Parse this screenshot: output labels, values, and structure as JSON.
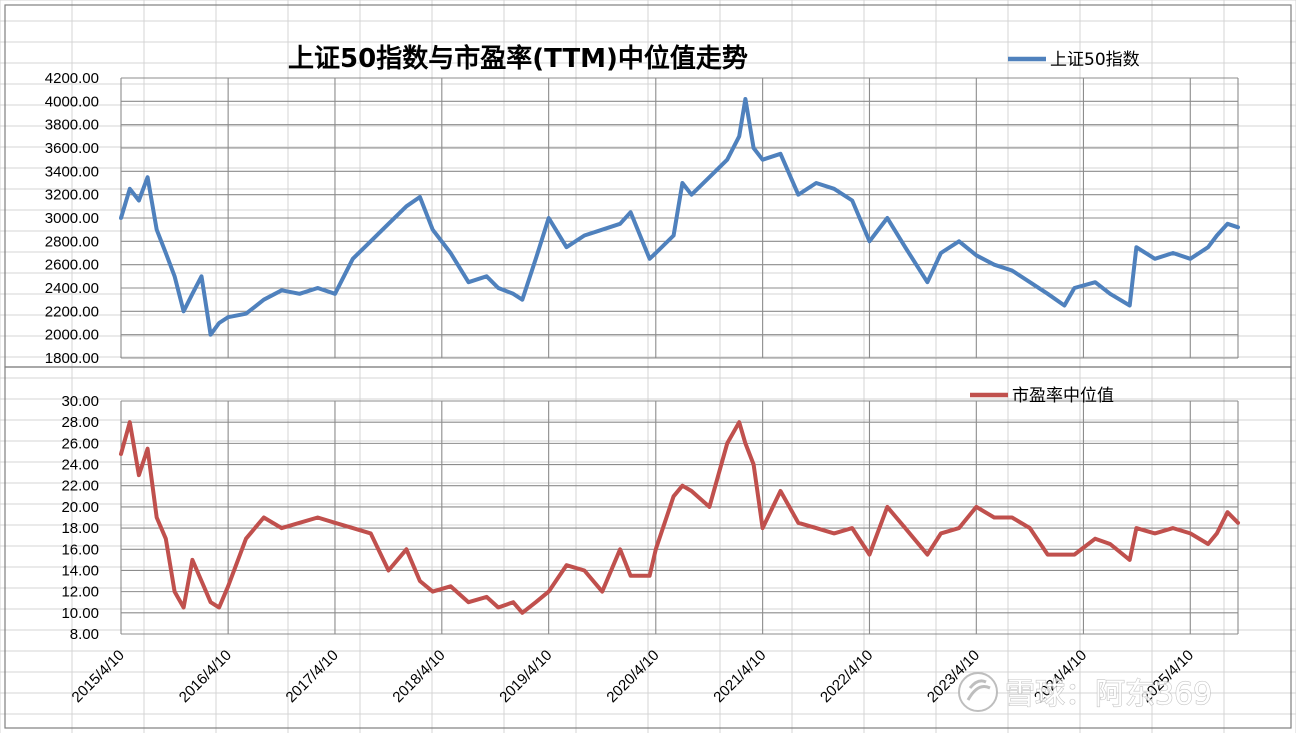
{
  "chart_data": [
    {
      "type": "line",
      "title": "上证50指数与市盈率(TTM)中位值走势",
      "legend_position": "top-right",
      "grid": true,
      "ylim": [
        1800,
        4200
      ],
      "y_ticks": [
        "4200.00",
        "4000.00",
        "3800.00",
        "3600.00",
        "3400.00",
        "3200.00",
        "3000.00",
        "2800.00",
        "2600.00",
        "2400.00",
        "2200.00",
        "2000.00",
        "1800.00"
      ],
      "series": [
        {
          "name": "上证50指数",
          "color": "#4f81bd",
          "x": [
            "2015/4/10",
            "2015/5/10",
            "2015/6/10",
            "2015/7/10",
            "2015/8/10",
            "2015/9/10",
            "2015/10/10",
            "2015/11/10",
            "2015/12/10",
            "2016/1/10",
            "2016/2/10",
            "2016/3/10",
            "2016/4/10",
            "2016/6/10",
            "2016/8/10",
            "2016/10/10",
            "2016/12/10",
            "2017/2/10",
            "2017/4/10",
            "2017/6/10",
            "2017/8/10",
            "2017/10/10",
            "2017/12/10",
            "2018/1/25",
            "2018/3/10",
            "2018/5/10",
            "2018/7/10",
            "2018/9/10",
            "2018/10/20",
            "2018/12/10",
            "2019/1/10",
            "2019/2/25",
            "2019/4/10",
            "2019/6/10",
            "2019/8/10",
            "2019/10/10",
            "2019/12/10",
            "2020/1/15",
            "2020/3/20",
            "2020/4/10",
            "2020/6/10",
            "2020/7/10",
            "2020/8/10",
            "2020/10/10",
            "2020/12/10",
            "2021/1/20",
            "2021/2/10",
            "2021/3/10",
            "2021/4/10",
            "2021/6/10",
            "2021/8/10",
            "2021/10/10",
            "2021/12/10",
            "2022/2/10",
            "2022/4/10",
            "2022/6/10",
            "2022/8/10",
            "2022/10/25",
            "2022/12/10",
            "2023/2/10",
            "2023/4/10",
            "2023/6/10",
            "2023/8/10",
            "2023/10/10",
            "2023/12/10",
            "2024/2/5",
            "2024/3/10",
            "2024/5/20",
            "2024/7/10",
            "2024/9/15",
            "2024/10/8",
            "2024/12/10",
            "2025/2/10",
            "2025/4/10",
            "2025/6/10",
            "2025/7/10",
            "2025/8/15",
            "2025/9/20"
          ],
          "values": [
            3000,
            3250,
            3150,
            3350,
            2900,
            2700,
            2500,
            2200,
            2350,
            2500,
            2000,
            2100,
            2150,
            2180,
            2300,
            2380,
            2350,
            2400,
            2350,
            2650,
            2800,
            2950,
            3100,
            3180,
            2900,
            2700,
            2450,
            2500,
            2400,
            2350,
            2300,
            2650,
            3000,
            2750,
            2850,
            2900,
            2950,
            3050,
            2650,
            2700,
            2850,
            3300,
            3200,
            3350,
            3500,
            3700,
            4020,
            3600,
            3500,
            3550,
            3200,
            3300,
            3250,
            3150,
            2800,
            3000,
            2750,
            2450,
            2700,
            2800,
            2680,
            2600,
            2550,
            2450,
            2350,
            2250,
            2400,
            2450,
            2350,
            2250,
            2750,
            2650,
            2700,
            2650,
            2750,
            2850,
            2950,
            2920
          ]
        },
        {
          "name": "市盈率中位值",
          "color": "#c0504d",
          "x": [
            "2015/4/10",
            "2015/5/10",
            "2015/6/10",
            "2015/7/10",
            "2015/8/10",
            "2015/9/10",
            "2015/10/10",
            "2015/11/10",
            "2015/12/10",
            "2016/1/10",
            "2016/2/10",
            "2016/3/10",
            "2016/4/10",
            "2016/6/10",
            "2016/8/10",
            "2016/10/10",
            "2016/12/10",
            "2017/2/10",
            "2017/4/10",
            "2017/6/10",
            "2017/8/10",
            "2017/10/10",
            "2017/12/10",
            "2018/1/25",
            "2018/3/10",
            "2018/5/10",
            "2018/7/10",
            "2018/9/10",
            "2018/10/20",
            "2018/12/10",
            "2019/1/10",
            "2019/2/25",
            "2019/4/10",
            "2019/6/10",
            "2019/8/10",
            "2019/10/10",
            "2019/12/10",
            "2020/1/15",
            "2020/3/20",
            "2020/4/10",
            "2020/6/10",
            "2020/7/10",
            "2020/8/10",
            "2020/10/10",
            "2020/12/10",
            "2021/1/20",
            "2021/2/10",
            "2021/3/10",
            "2021/4/10",
            "2021/6/10",
            "2021/8/10",
            "2021/10/10",
            "2021/12/10",
            "2022/2/10",
            "2022/4/10",
            "2022/6/10",
            "2022/8/10",
            "2022/10/25",
            "2022/12/10",
            "2023/2/10",
            "2023/4/10",
            "2023/6/10",
            "2023/8/10",
            "2023/10/10",
            "2023/12/10",
            "2024/2/5",
            "2024/3/10",
            "2024/5/20",
            "2024/7/10",
            "2024/9/15",
            "2024/10/8",
            "2024/12/10",
            "2025/2/10",
            "2025/4/10",
            "2025/6/10",
            "2025/7/10",
            "2025/8/15",
            "2025/9/20"
          ],
          "values": [
            25,
            28,
            23,
            25.5,
            19,
            17,
            12,
            10.5,
            15,
            13,
            11,
            10.5,
            12.5,
            17,
            19,
            18,
            18.5,
            19,
            18.5,
            18,
            17.5,
            14,
            16,
            13,
            12,
            12.5,
            11,
            11.5,
            10.5,
            11,
            10,
            11,
            12,
            14.5,
            14,
            12,
            16,
            13.5,
            13.5,
            16,
            21,
            22,
            21.5,
            20,
            26,
            28,
            26,
            24,
            18,
            21.5,
            18.5,
            18,
            17.5,
            18,
            15.5,
            20,
            18,
            15.5,
            17.5,
            18,
            20,
            19,
            19,
            18,
            15.5,
            15.5,
            15.5,
            17,
            16.5,
            15,
            18,
            17.5,
            18,
            17.5,
            16.5,
            17.5,
            19.5,
            18.5
          ]
        }
      ],
      "x_tick_labels": [
        "2015/4/10",
        "2016/4/10",
        "2017/4/10",
        "2018/4/10",
        "2019/4/10",
        "2020/4/10",
        "2021/4/10",
        "2022/4/10",
        "2023/4/10",
        "2024/4/10",
        "2025/4/10"
      ]
    },
    {
      "type": "line",
      "ylim": [
        8,
        30
      ],
      "y_ticks": [
        "30.00",
        "28.00",
        "26.00",
        "24.00",
        "22.00",
        "20.00",
        "18.00",
        "16.00",
        "14.00",
        "12.00",
        "10.00",
        "8.00"
      ],
      "legend_position": "top-right",
      "grid": true
    }
  ],
  "watermark": {
    "text": "雪球：阿东369"
  }
}
